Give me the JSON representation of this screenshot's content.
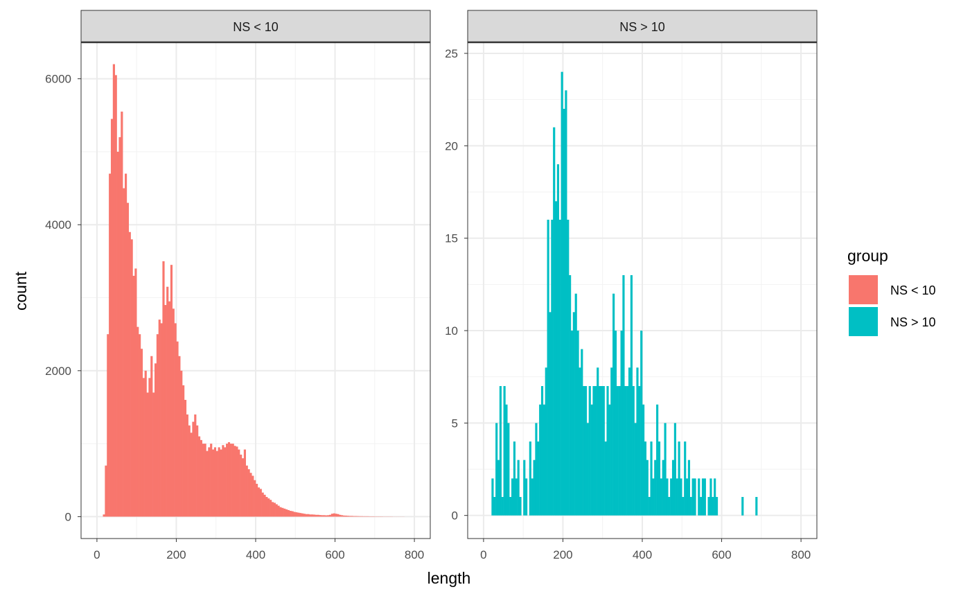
{
  "chart_data": [
    {
      "type": "bar",
      "panel": "NS < 10",
      "xlabel": "length",
      "ylabel": "count",
      "xlim": [
        -40,
        840
      ],
      "ylim": [
        -300,
        6500
      ],
      "xticks": [
        "0",
        "200",
        "400",
        "600",
        "800"
      ],
      "yticks": [
        "0",
        "2000",
        "4000",
        "6000"
      ],
      "color": "#F8766D",
      "binwidth": 5,
      "bin_start": 15,
      "values": [
        30,
        700,
        2500,
        4700,
        5450,
        6200,
        6050,
        5000,
        5200,
        5550,
        4500,
        4700,
        4300,
        3900,
        3800,
        3300,
        3400,
        2600,
        2500,
        2300,
        1900,
        2000,
        1700,
        1900,
        2200,
        1700,
        2100,
        2500,
        2700,
        2650,
        3500,
        2900,
        3150,
        2950,
        3450,
        2850,
        2650,
        2400,
        2200,
        2000,
        1800,
        1600,
        1400,
        1250,
        1150,
        1300,
        1400,
        1250,
        1100,
        1050,
        1000,
        1000,
        900,
        950,
        1000,
        920,
        950,
        900,
        950,
        920,
        980,
        950,
        1000,
        1020,
        1000,
        1000,
        970,
        960,
        920,
        850,
        800,
        920,
        700,
        650,
        600,
        560,
        500,
        450,
        400,
        380,
        330,
        300,
        270,
        250,
        230,
        200,
        190,
        170,
        150,
        130,
        120,
        110,
        100,
        90,
        80,
        75,
        65,
        60,
        55,
        50,
        45,
        40,
        35,
        35,
        30,
        30,
        28,
        25,
        25,
        22,
        20,
        20,
        18,
        20,
        25,
        40,
        45,
        40,
        35,
        25,
        20,
        15,
        14,
        12,
        10,
        10,
        8,
        8,
        7,
        6,
        6,
        5,
        5,
        5,
        4,
        4,
        4,
        3,
        3,
        3,
        3,
        2,
        2,
        2,
        2,
        2,
        1,
        1,
        1,
        1,
        1,
        1
      ]
    },
    {
      "type": "bar",
      "panel": "NS > 10",
      "xlabel": "length",
      "ylabel": "count",
      "xlim": [
        -40,
        840
      ],
      "ylim": [
        -1.25,
        25.6
      ],
      "xticks": [
        "0",
        "200",
        "400",
        "600",
        "800"
      ],
      "yticks": [
        "0",
        "5",
        "10",
        "15",
        "20",
        "25"
      ],
      "color": "#00BFC4",
      "binwidth": 5,
      "bin_start": 20,
      "values": [
        2,
        1,
        5,
        3,
        7,
        1,
        7,
        6,
        5,
        1,
        2,
        4,
        2,
        3,
        1,
        0,
        3,
        2,
        0,
        4,
        2,
        3,
        5,
        4,
        6,
        7,
        6,
        8,
        16,
        11,
        16,
        21,
        17,
        19,
        16,
        24,
        22,
        23,
        16,
        13,
        10,
        11,
        12,
        10,
        8,
        9,
        7,
        7,
        5,
        7,
        6,
        7,
        7,
        8,
        7,
        7,
        7,
        4,
        7,
        6,
        8,
        12,
        10,
        7,
        7,
        10,
        13,
        7,
        7,
        8,
        13,
        7,
        5,
        8,
        7,
        10,
        6,
        4,
        3,
        1,
        4,
        2,
        3,
        6,
        4,
        2,
        3,
        5,
        2,
        1,
        2,
        3,
        5,
        2,
        4,
        2,
        1,
        4,
        2,
        3,
        1,
        2,
        2,
        0,
        2,
        1,
        2,
        2,
        0,
        1,
        2,
        1,
        2,
        1,
        0,
        0,
        0,
        0,
        0,
        0,
        0,
        0,
        0,
        0,
        0,
        0,
        1,
        0,
        0,
        0,
        0,
        0,
        0,
        1
      ]
    }
  ],
  "legend": {
    "title": "group",
    "placement": "right",
    "items": [
      {
        "label": "NS < 10",
        "color": "#F8766D"
      },
      {
        "label": "NS > 10",
        "color": "#00BFC4"
      }
    ]
  }
}
